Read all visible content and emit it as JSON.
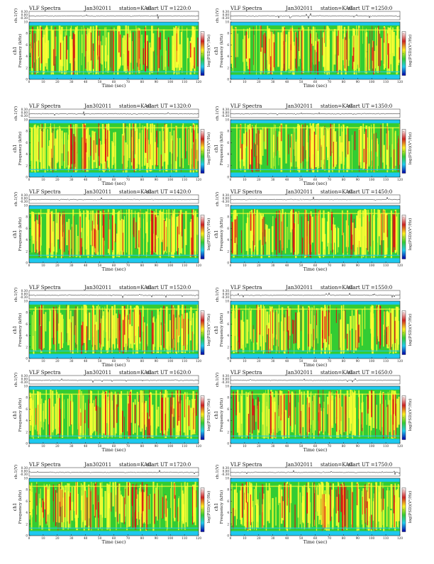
{
  "chart_data": [
    {
      "type": "heatmap",
      "product": "VLF Spectra",
      "date": "Jan302011",
      "station": "station=KAG",
      "start": "start  UT  =1220:0",
      "ylabel_top": "ch.1(V)",
      "ylabel_spec": "ch1",
      "freq_label": "Frequency  (kHz)",
      "xlabel": "Time  (sec)",
      "colorbar_label": "log(PSD)(V²/Hz)",
      "xlim": [
        0,
        120
      ],
      "ylim": [
        0,
        10
      ],
      "x_ticks": [
        0,
        10,
        20,
        30,
        40,
        50,
        60,
        70,
        80,
        90,
        100,
        110,
        120
      ],
      "y_ticks": [
        0,
        2,
        4,
        6,
        8,
        10
      ],
      "amp_ticks": [
        "0.30",
        "0.00",
        "-0.30"
      ],
      "amp_ylim": [
        -0.3,
        0.3
      ],
      "cb_ticks": [
        "-",
        "-",
        "-"
      ]
    },
    {
      "type": "heatmap",
      "product": "VLF Spectra",
      "date": "Jan302011",
      "station": "station=KAG",
      "start": "start  UT  =1250:0",
      "ylabel_top": "ch.1(V)",
      "ylabel_spec": "ch1",
      "freq_label": "Frequency  (kHz)",
      "xlabel": "Time  (sec)",
      "colorbar_label": "log(PSD)(V²/Hz)",
      "xlim": [
        0,
        120
      ],
      "ylim": [
        0,
        10
      ],
      "x_ticks": [
        0,
        10,
        20,
        30,
        40,
        50,
        60,
        70,
        80,
        90,
        100,
        110,
        120
      ],
      "y_ticks": [
        0,
        2,
        4,
        6,
        8,
        10
      ],
      "amp_ticks": [
        "0.30",
        "0.00",
        "-0.30"
      ],
      "amp_ylim": [
        -0.3,
        0.3
      ],
      "cb_ticks": [
        "-",
        "-",
        "-"
      ]
    },
    {
      "type": "heatmap",
      "product": "VLF Spectra",
      "date": "Jan302011",
      "station": "station=KAG",
      "start": "start  UT  =1320:0",
      "ylabel_top": "ch.1(V)",
      "ylabel_spec": "ch1",
      "freq_label": "Frequency  (kHz)",
      "xlabel": "Time  (sec)",
      "colorbar_label": "log(PSD)(V²/Hz)",
      "xlim": [
        0,
        120
      ],
      "ylim": [
        0,
        10
      ],
      "x_ticks": [
        0,
        10,
        20,
        30,
        40,
        50,
        60,
        70,
        80,
        90,
        100,
        110,
        120
      ],
      "y_ticks": [
        0,
        2,
        4,
        6,
        8,
        10
      ],
      "amp_ticks": [
        "0.30",
        "0.00",
        "-0.30"
      ],
      "amp_ylim": [
        -0.3,
        0.3
      ],
      "cb_ticks": [
        "-",
        "-",
        "-"
      ]
    },
    {
      "type": "heatmap",
      "product": "VLF Spectra",
      "date": "Jan302011",
      "station": "station=KAG",
      "start": "start  UT  =1350:0",
      "ylabel_top": "ch.1(V)",
      "ylabel_spec": "ch1",
      "freq_label": "Frequency  (kHz)",
      "xlabel": "Time  (sec)",
      "colorbar_label": "log(PSD)(V²/Hz)",
      "xlim": [
        0,
        120
      ],
      "ylim": [
        0,
        10
      ],
      "x_ticks": [
        0,
        10,
        20,
        30,
        40,
        50,
        60,
        70,
        80,
        90,
        100,
        110,
        120
      ],
      "y_ticks": [
        0,
        2,
        4,
        6,
        8,
        10
      ],
      "amp_ticks": [
        "0.30",
        "0.00",
        "-0.30"
      ],
      "amp_ylim": [
        -0.3,
        0.3
      ],
      "cb_ticks": [
        "-",
        "-",
        "-"
      ]
    },
    {
      "type": "heatmap",
      "product": "VLF Spectra",
      "date": "Jan302011",
      "station": "station=KAG",
      "start": "start  UT  =1420:0",
      "ylabel_top": "ch.1(V)",
      "ylabel_spec": "ch1",
      "freq_label": "Frequency  (kHz)",
      "xlabel": "Time  (sec)",
      "colorbar_label": "log(PSD)(V²/Hz)",
      "xlim": [
        0,
        120
      ],
      "ylim": [
        0,
        10
      ],
      "x_ticks": [
        0,
        10,
        20,
        30,
        40,
        50,
        60,
        70,
        80,
        90,
        100,
        110,
        120
      ],
      "y_ticks": [
        0,
        2,
        4,
        6,
        8,
        10
      ],
      "amp_ticks": [
        "0.30",
        "0.00",
        "-0.30"
      ],
      "amp_ylim": [
        -0.3,
        0.3
      ],
      "cb_ticks": [
        "-",
        "-",
        "-"
      ]
    },
    {
      "type": "heatmap",
      "product": "VLF Spectra",
      "date": "Jan302011",
      "station": "station=KAG",
      "start": "start  UT  =1450:0",
      "ylabel_top": "ch.1(V)",
      "ylabel_spec": "ch1",
      "freq_label": "Frequency  (kHz)",
      "xlabel": "Time  (sec)",
      "colorbar_label": "log(PSD)(V²/Hz)",
      "xlim": [
        0,
        120
      ],
      "ylim": [
        0,
        10
      ],
      "x_ticks": [
        0,
        10,
        20,
        30,
        40,
        50,
        60,
        70,
        80,
        90,
        100,
        110,
        120
      ],
      "y_ticks": [
        0,
        2,
        4,
        6,
        8,
        10
      ],
      "amp_ticks": [
        "0.30",
        "0.00",
        "-0.30"
      ],
      "amp_ylim": [
        -0.3,
        0.3
      ],
      "cb_ticks": [
        "-",
        "-",
        "-"
      ]
    },
    {
      "type": "heatmap",
      "product": "VLF Spectra",
      "date": "Jan302011",
      "station": "station=KAG",
      "start": "start  UT  =1520:0",
      "ylabel_top": "ch.1(V)",
      "ylabel_spec": "ch1",
      "freq_label": "Frequency  (kHz)",
      "xlabel": "Time  (sec)",
      "colorbar_label": "log(PSD)(V²/Hz)",
      "xlim": [
        0,
        120
      ],
      "ylim": [
        0,
        10
      ],
      "x_ticks": [
        0,
        10,
        20,
        30,
        40,
        50,
        60,
        70,
        80,
        90,
        100,
        110,
        120
      ],
      "y_ticks": [
        0,
        2,
        4,
        6,
        8,
        10
      ],
      "amp_ticks": [
        "0.30",
        "0.00",
        "-0.30"
      ],
      "amp_ylim": [
        -0.3,
        0.3
      ],
      "cb_ticks": [
        "-",
        "-",
        "-"
      ]
    },
    {
      "type": "heatmap",
      "product": "VLF Spectra",
      "date": "Jan302011",
      "station": "station=KAG",
      "start": "start  UT  =1550:0",
      "ylabel_top": "ch.1(V)",
      "ylabel_spec": "ch1",
      "freq_label": "Frequency  (kHz)",
      "xlabel": "Time  (sec)",
      "colorbar_label": "log(PSD)(V²/Hz)",
      "xlim": [
        0,
        120
      ],
      "ylim": [
        0,
        10
      ],
      "x_ticks": [
        0,
        10,
        20,
        30,
        40,
        50,
        60,
        70,
        80,
        90,
        100,
        110,
        120
      ],
      "y_ticks": [
        0,
        2,
        4,
        6,
        8,
        10
      ],
      "amp_ticks": [
        "0.30",
        "0.00",
        "-0.30"
      ],
      "amp_ylim": [
        -0.3,
        0.3
      ],
      "cb_ticks": [
        "-",
        "-",
        "-"
      ]
    },
    {
      "type": "heatmap",
      "product": "VLF Spectra",
      "date": "Jan302011",
      "station": "station=KAG",
      "start": "start  UT  =1620:0",
      "ylabel_top": "ch.1(V)",
      "ylabel_spec": "ch1",
      "freq_label": "Frequency  (kHz)",
      "xlabel": "Time  (sec)",
      "colorbar_label": "log(PSD)(V²/Hz)",
      "xlim": [
        0,
        120
      ],
      "ylim": [
        0,
        10
      ],
      "x_ticks": [
        0,
        10,
        20,
        30,
        40,
        50,
        60,
        70,
        80,
        90,
        100,
        110,
        120
      ],
      "y_ticks": [
        0,
        2,
        4,
        6,
        8,
        10
      ],
      "amp_ticks": [
        "0.30",
        "0.00",
        "-0.30"
      ],
      "amp_ylim": [
        -0.3,
        0.3
      ],
      "cb_ticks": [
        "-",
        "-",
        "-"
      ]
    },
    {
      "type": "heatmap",
      "product": "VLF Spectra",
      "date": "Jan302011",
      "station": "station=KAG",
      "start": "start  UT  =1650:0",
      "ylabel_top": "ch.1(V)",
      "ylabel_spec": "ch1",
      "freq_label": "Frequency  (kHz)",
      "xlabel": "Time  (sec)",
      "colorbar_label": "log(PSD)(V²/Hz)",
      "xlim": [
        0,
        120
      ],
      "ylim": [
        0,
        10
      ],
      "x_ticks": [
        0,
        10,
        20,
        30,
        40,
        50,
        60,
        70,
        80,
        90,
        100,
        110,
        120
      ],
      "y_ticks": [
        0,
        2,
        4,
        6,
        8,
        10
      ],
      "amp_ticks": [
        "0.30",
        "0.00",
        "-0.30"
      ],
      "amp_ylim": [
        -0.3,
        0.3
      ],
      "cb_ticks": [
        "-",
        "-",
        "-"
      ]
    },
    {
      "type": "heatmap",
      "product": "VLF Spectra",
      "date": "Jan302011",
      "station": "station=KAG",
      "start": "start  UT  =1720:0",
      "ylabel_top": "ch.1(V)",
      "ylabel_spec": "ch1",
      "freq_label": "Frequency  (kHz)",
      "xlabel": "Time  (sec)",
      "colorbar_label": "log(PSD)(V²/Hz)",
      "xlim": [
        0,
        120
      ],
      "ylim": [
        0,
        10
      ],
      "x_ticks": [
        0,
        10,
        20,
        30,
        40,
        50,
        60,
        70,
        80,
        90,
        100,
        110,
        120
      ],
      "y_ticks": [
        0,
        2,
        4,
        6,
        8,
        10
      ],
      "amp_ticks": [
        "0.30",
        "0.00",
        "-0.30"
      ],
      "amp_ylim": [
        -0.3,
        0.3
      ],
      "cb_ticks": [
        "-",
        "-",
        "-"
      ]
    },
    {
      "type": "heatmap",
      "product": "VLF Spectra",
      "date": "Jan302011",
      "station": "station=KAG",
      "start": "start  UT  =1750:0",
      "ylabel_top": "ch.1(V)",
      "ylabel_spec": "ch1",
      "freq_label": "Frequency  (kHz)",
      "xlabel": "Time  (sec)",
      "colorbar_label": "log(PSD)(V²/Hz)",
      "xlim": [
        0,
        120
      ],
      "ylim": [
        0,
        10
      ],
      "x_ticks": [
        0,
        10,
        20,
        30,
        40,
        50,
        60,
        70,
        80,
        90,
        100,
        110,
        120
      ],
      "y_ticks": [
        0,
        2,
        4,
        6,
        8,
        10
      ],
      "amp_ticks": [
        "0.30",
        "0.00",
        "-0.30"
      ],
      "amp_ylim": [
        -0.3,
        0.3
      ],
      "cb_ticks": [
        "-",
        "-",
        "-"
      ]
    }
  ],
  "colors": {
    "background_band": "#1ec8ee",
    "low": "#33cc33",
    "mid": "#ffff33",
    "high": "#dd1111",
    "colorbar_stops": [
      "#ffffff",
      "#cc2222",
      "#ffee22",
      "#33cc33",
      "#22ccee",
      "#0000aa"
    ]
  }
}
